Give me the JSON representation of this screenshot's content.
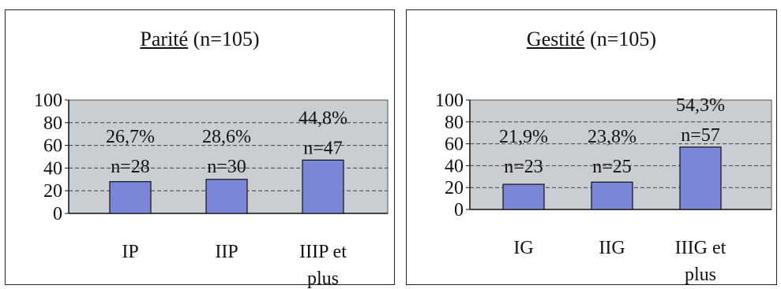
{
  "chart_data": [
    {
      "type": "bar",
      "title_main": "Parité",
      "title_suffix": "(n=105)",
      "categories": [
        "IP",
        "IIP",
        "IIIP et plus"
      ],
      "category_lines": [
        [
          "IP"
        ],
        [
          "IIP"
        ],
        [
          "IIIP et",
          "plus"
        ]
      ],
      "values": [
        28,
        30,
        47
      ],
      "percent_labels": [
        "26,7%",
        "28,6%",
        "44,8%"
      ],
      "count_labels": [
        "n=28",
        "n=30",
        "n=47"
      ],
      "ylim": [
        0,
        100
      ],
      "yticks": [
        "0",
        "20",
        "40",
        "60",
        "80",
        "100"
      ],
      "grid": true,
      "plot_bg": "#c9ced3",
      "bar_color": "#7b86d6"
    },
    {
      "type": "bar",
      "title_main": "Gestité",
      "title_suffix": "(n=105)",
      "categories": [
        "IG",
        "IIG",
        "IIIG et plus"
      ],
      "category_lines": [
        [
          "IG"
        ],
        [
          "IIG"
        ],
        [
          "IIIG et",
          "plus"
        ]
      ],
      "values": [
        23,
        25,
        57
      ],
      "percent_labels": [
        "21,9%",
        "23,8%",
        "54,3%"
      ],
      "count_labels": [
        "n=23",
        "n=25",
        "n=57"
      ],
      "ylim": [
        0,
        100
      ],
      "yticks": [
        "0",
        "20",
        "40",
        "60",
        "80",
        "100"
      ],
      "grid": true,
      "plot_bg": "#c9ced3",
      "bar_color": "#7b86d6"
    }
  ]
}
